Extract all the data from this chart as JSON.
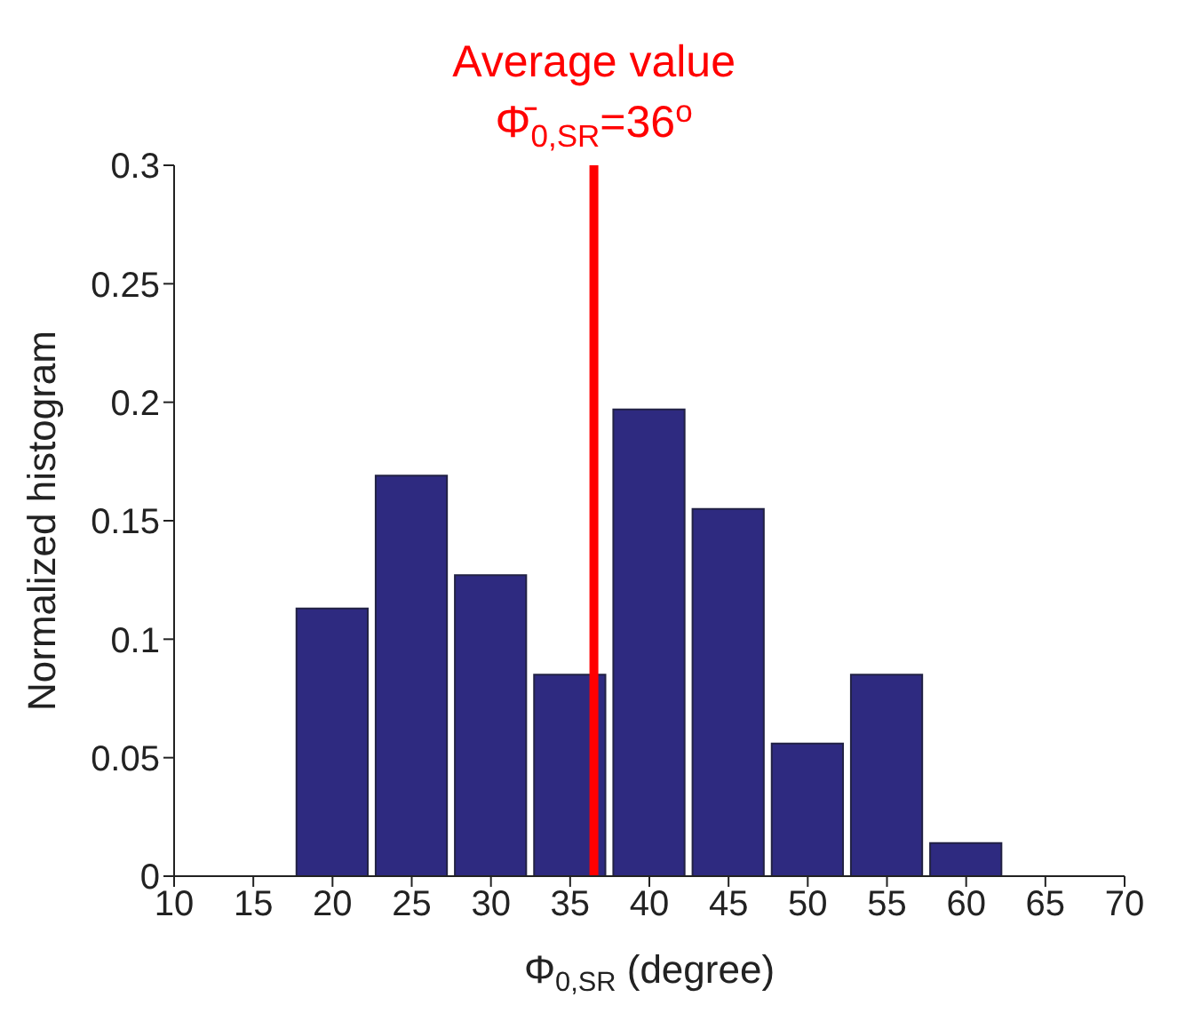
{
  "chart_data": {
    "type": "histogram",
    "xlabel": "Φ$_{0,SR}$ (degree)",
    "ylabel": "Normalized histogram",
    "bins": [
      12.5,
      17.5,
      22.5,
      27.5,
      32.5,
      37.5,
      42.5,
      47.5,
      52.5,
      57.5,
      62.5,
      67.5
    ],
    "values": [
      0,
      0.113,
      0.169,
      0.127,
      0.085,
      0.197,
      0.155,
      0.056,
      0.085,
      0.014,
      0
    ],
    "color": "#2e2a80",
    "xlim": [
      10,
      70
    ],
    "xticks": [
      10,
      15,
      20,
      25,
      30,
      35,
      40,
      45,
      50,
      55,
      60,
      65,
      70
    ],
    "ylim": [
      0,
      0.3
    ],
    "yticks": [
      0,
      0.05,
      0.1,
      0.15,
      0.2,
      0.25,
      0.3
    ],
    "ref_lines": [
      {
        "axis": "x",
        "value": 36.5,
        "label": "Average value",
        "color": "#ff0000"
      }
    ],
    "annotations": [
      "Φ̄$_{0,SR}$=36$^{o}$"
    ]
  }
}
